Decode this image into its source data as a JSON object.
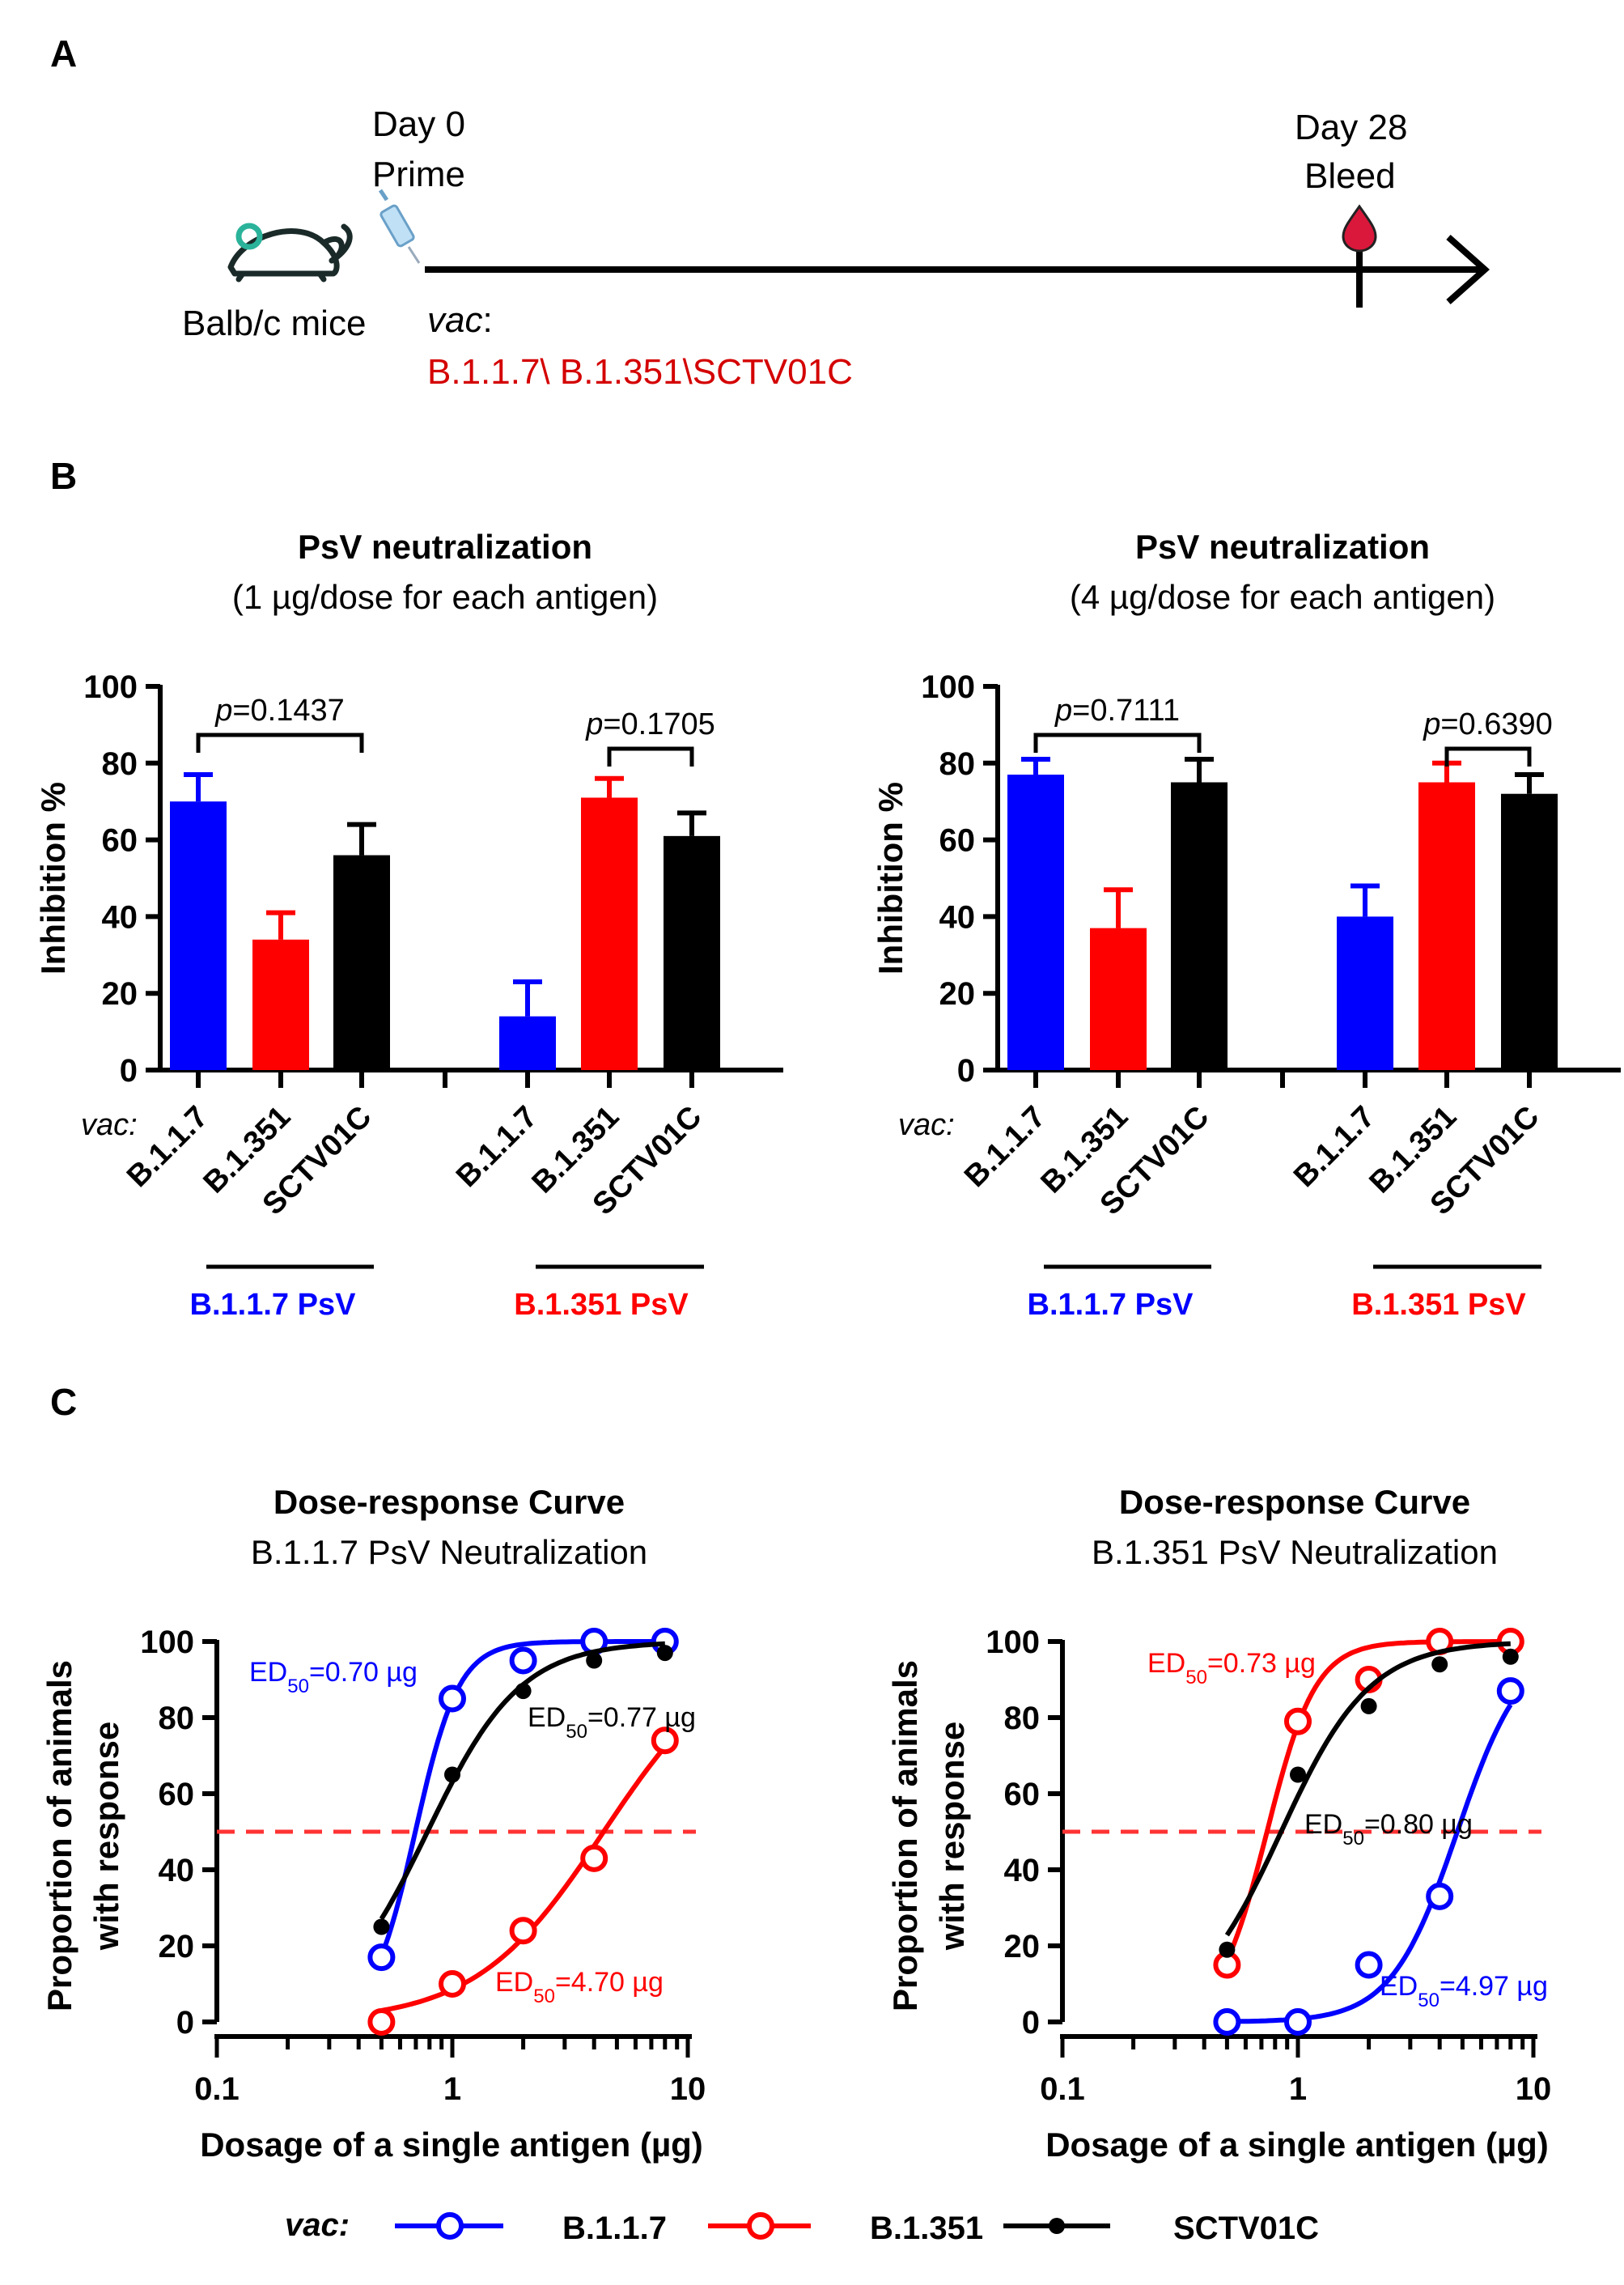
{
  "panel_a": {
    "letter": "A",
    "day0_line1": "Day 0",
    "day0_line2": "Prime",
    "day28_line1": "Day 28",
    "day28_line2": "Bleed",
    "mice_label": "Balb/c mice",
    "vac_label": "vac",
    "vac_colon": ":",
    "vac_list": "B.1.1.7\\ B.1.351\\SCTV01C",
    "vac_list_color": "#d40000",
    "icons": [
      "mouse-icon",
      "syringe-icon",
      "blood-drop-icon"
    ]
  },
  "panel_b": {
    "letter": "B",
    "vac_prefix": "vac:",
    "colors": {
      "B.1.1.7": "#0000ff",
      "B.1.351": "#ff0000",
      "SCTV01C": "#000000"
    },
    "charts": [
      {
        "title": "PsV neutralization",
        "subtitle": "(1 µg/dose for each antigen)",
        "ylabel": "Inhibition %",
        "yticks": [
          "0",
          "20",
          "40",
          "60",
          "80",
          "100"
        ],
        "p_prefix": "p",
        "groups": [
          {
            "label": "B.1.1.7 PsV",
            "color": "#0000ff",
            "p_value": "=0.1437",
            "bars": [
              {
                "vac": "B.1.1.7",
                "mean": 70,
                "sem": 7
              },
              {
                "vac": "B.1.351",
                "mean": 34,
                "sem": 7
              },
              {
                "vac": "SCTV01C",
                "mean": 56,
                "sem": 8
              }
            ]
          },
          {
            "label": "B.1.351 PsV",
            "color": "#ff0000",
            "p_value": "=0.1705",
            "bars": [
              {
                "vac": "B.1.1.7",
                "mean": 14,
                "sem": 9
              },
              {
                "vac": "B.1.351",
                "mean": 71,
                "sem": 5
              },
              {
                "vac": "SCTV01C",
                "mean": 61,
                "sem": 6
              }
            ]
          }
        ]
      },
      {
        "title": "PsV neutralization",
        "subtitle": "(4 µg/dose for each antigen)",
        "ylabel": "Inhibition %",
        "yticks": [
          "0",
          "20",
          "40",
          "60",
          "80",
          "100"
        ],
        "p_prefix": "p",
        "groups": [
          {
            "label": "B.1.1.7 PsV",
            "color": "#0000ff",
            "p_value": "=0.7111",
            "bars": [
              {
                "vac": "B.1.1.7",
                "mean": 77,
                "sem": 4
              },
              {
                "vac": "B.1.351",
                "mean": 37,
                "sem": 10
              },
              {
                "vac": "SCTV01C",
                "mean": 75,
                "sem": 6
              }
            ]
          },
          {
            "label": "B.1.351 PsV",
            "color": "#ff0000",
            "p_value": "=0.6390",
            "bars": [
              {
                "vac": "B.1.1.7",
                "mean": 40,
                "sem": 8
              },
              {
                "vac": "B.1.351",
                "mean": 75,
                "sem": 5
              },
              {
                "vac": "SCTV01C",
                "mean": 72,
                "sem": 5
              }
            ]
          }
        ]
      }
    ]
  },
  "panel_c": {
    "letter": "C",
    "charts": [
      {
        "title": "Dose-response Curve",
        "subtitle": "B.1.1.7 PsV Neutralization",
        "ylabel_line1": "Proportion of animals",
        "ylabel_line2": "with response",
        "xlabel": "Dosage of a single antigen (µg)",
        "yticks": [
          "0",
          "20",
          "40",
          "60",
          "80",
          "100"
        ],
        "xticks": [
          "0.1",
          "1",
          "10"
        ],
        "threshold": 50,
        "series": [
          {
            "name": "B.1.1.7",
            "color": "#0000ff",
            "marker": "open-circle",
            "x": [
              0.5,
              1,
              2,
              4,
              8
            ],
            "y": [
              17,
              85,
              95,
              100,
              100
            ],
            "ed50_value": "0.70",
            "ed50_prefix": "ED",
            "ed50_sub": "50",
            "ed50_suffix": "=0.70 µg"
          },
          {
            "name": "B.1.351",
            "color": "#ff0000",
            "marker": "open-circle",
            "x": [
              0.5,
              1,
              2,
              4,
              8
            ],
            "y": [
              0,
              10,
              24,
              43,
              74
            ],
            "ed50_value": "4.70",
            "ed50_prefix": "ED",
            "ed50_sub": "50",
            "ed50_suffix": "=4.70 µg"
          },
          {
            "name": "SCTV01C",
            "color": "#000000",
            "marker": "filled-dot",
            "x": [
              0.5,
              1,
              2,
              4,
              8
            ],
            "y": [
              25,
              65,
              87,
              95,
              97
            ],
            "ed50_value": "0.77",
            "ed50_prefix": "ED",
            "ed50_sub": "50",
            "ed50_suffix": "=0.77 µg"
          }
        ]
      },
      {
        "title": "Dose-response Curve",
        "subtitle": "B.1.351 PsV Neutralization",
        "ylabel_line1": "Proportion of animals",
        "ylabel_line2": "with response",
        "xlabel": "Dosage of a single antigen (µg)",
        "yticks": [
          "0",
          "20",
          "40",
          "60",
          "80",
          "100"
        ],
        "xticks": [
          "0.1",
          "1",
          "10"
        ],
        "threshold": 50,
        "series": [
          {
            "name": "B.1.1.7",
            "color": "#0000ff",
            "marker": "open-circle",
            "x": [
              0.5,
              1,
              2,
              4,
              8
            ],
            "y": [
              0,
              0,
              15,
              33,
              87
            ],
            "ed50_value": "4.97",
            "ed50_prefix": "ED",
            "ed50_sub": "50",
            "ed50_suffix": "=4.97 µg"
          },
          {
            "name": "B.1.351",
            "color": "#ff0000",
            "marker": "open-circle",
            "x": [
              0.5,
              1,
              2,
              4,
              8
            ],
            "y": [
              15,
              79,
              90,
              100,
              100
            ],
            "ed50_value": "0.73",
            "ed50_prefix": "ED",
            "ed50_sub": "50",
            "ed50_suffix": "=0.73 µg"
          },
          {
            "name": "SCTV01C",
            "color": "#000000",
            "marker": "filled-dot",
            "x": [
              0.5,
              1,
              2,
              4,
              8
            ],
            "y": [
              19,
              65,
              83,
              94,
              96
            ],
            "ed50_value": "0.80",
            "ed50_prefix": "ED",
            "ed50_sub": "50",
            "ed50_suffix": "=0.80 µg"
          }
        ]
      }
    ],
    "legend": {
      "prefix": "vac:",
      "items": [
        {
          "name": "B.1.1.7",
          "color": "#0000ff"
        },
        {
          "name": "B.1.351",
          "color": "#ff0000"
        },
        {
          "name": "SCTV01C",
          "color": "#000000"
        }
      ]
    }
  },
  "chart_data": [
    {
      "type": "bar",
      "title": "PsV neutralization (1 µg/dose for each antigen)",
      "ylabel": "Inhibition %",
      "ylim": [
        0,
        100
      ],
      "categories": [
        "B.1.1.7 PsV",
        "B.1.351 PsV"
      ],
      "series": [
        {
          "name": "B.1.1.7",
          "values": [
            70,
            14
          ]
        },
        {
          "name": "B.1.351",
          "values": [
            34,
            71
          ]
        },
        {
          "name": "SCTV01C",
          "values": [
            56,
            61
          ]
        }
      ]
    },
    {
      "type": "bar",
      "title": "PsV neutralization (4 µg/dose for each antigen)",
      "ylabel": "Inhibition %",
      "ylim": [
        0,
        100
      ],
      "categories": [
        "B.1.1.7 PsV",
        "B.1.351 PsV"
      ],
      "series": [
        {
          "name": "B.1.1.7",
          "values": [
            77,
            40
          ]
        },
        {
          "name": "B.1.351",
          "values": [
            37,
            75
          ]
        },
        {
          "name": "SCTV01C",
          "values": [
            75,
            72
          ]
        }
      ]
    },
    {
      "type": "line",
      "title": "Dose-response Curve B.1.1.7 PsV Neutralization",
      "xlabel": "Dosage of a single antigen (µg)",
      "ylabel": "Proportion of animals with response",
      "xscale": "log",
      "xlim": [
        0.1,
        10
      ],
      "ylim": [
        0,
        100
      ],
      "series": [
        {
          "name": "B.1.1.7",
          "x": [
            0.5,
            1,
            2,
            4,
            8
          ],
          "y": [
            17,
            85,
            95,
            100,
            100
          ]
        },
        {
          "name": "B.1.351",
          "x": [
            0.5,
            1,
            2,
            4,
            8
          ],
          "y": [
            0,
            10,
            24,
            43,
            74
          ]
        },
        {
          "name": "SCTV01C",
          "x": [
            0.5,
            1,
            2,
            4,
            8
          ],
          "y": [
            25,
            65,
            87,
            95,
            97
          ]
        }
      ]
    },
    {
      "type": "line",
      "title": "Dose-response Curve B.1.351 PsV Neutralization",
      "xlabel": "Dosage of a single antigen (µg)",
      "ylabel": "Proportion of animals with response",
      "xscale": "log",
      "xlim": [
        0.1,
        10
      ],
      "ylim": [
        0,
        100
      ],
      "series": [
        {
          "name": "B.1.1.7",
          "x": [
            0.5,
            1,
            2,
            4,
            8
          ],
          "y": [
            0,
            0,
            15,
            33,
            87
          ]
        },
        {
          "name": "B.1.351",
          "x": [
            0.5,
            1,
            2,
            4,
            8
          ],
          "y": [
            15,
            79,
            90,
            100,
            100
          ]
        },
        {
          "name": "SCTV01C",
          "x": [
            0.5,
            1,
            2,
            4,
            8
          ],
          "y": [
            19,
            65,
            83,
            94,
            96
          ]
        }
      ]
    }
  ]
}
